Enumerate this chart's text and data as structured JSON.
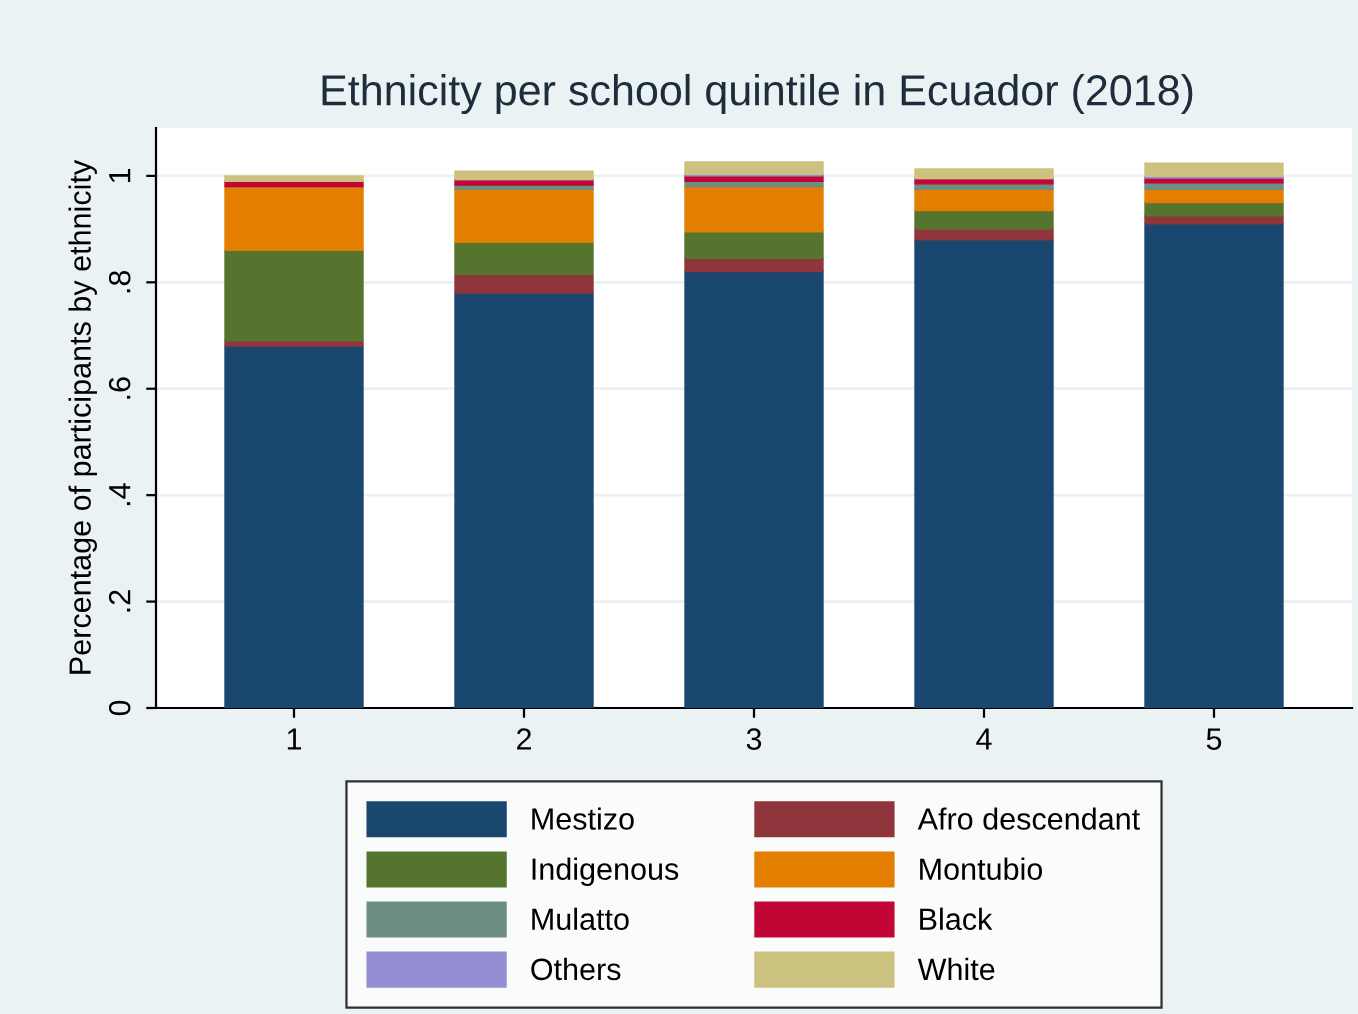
{
  "chart_data": {
    "type": "bar",
    "title": "Ethnicity per school quintile in Ecuador (2018)",
    "ylabel": "Percentage of participants by ethnicity",
    "categories": [
      "1",
      "2",
      "3",
      "4",
      "5"
    ],
    "stacked": true,
    "ylim": [
      0,
      1.09
    ],
    "yticks": [
      0,
      {
        "value": 0.2,
        "label": ".2"
      },
      {
        "value": 0.4,
        "label": ".4"
      },
      {
        "value": 0.6,
        "label": ".6"
      },
      {
        "value": 0.8,
        "label": ".8"
      },
      1
    ],
    "grid": "y",
    "legend": "bottom",
    "series": [
      {
        "name": "Mestizo",
        "color": "#1a476f",
        "values": [
          0.68,
          0.78,
          0.82,
          0.88,
          0.91
        ]
      },
      {
        "name": "Afro descendant",
        "color": "#90353b",
        "values": [
          0.01,
          0.035,
          0.025,
          0.02,
          0.015
        ]
      },
      {
        "name": "Indigenous",
        "color": "#55752f",
        "values": [
          0.17,
          0.06,
          0.05,
          0.035,
          0.025
        ]
      },
      {
        "name": "Montubio",
        "color": "#e37e00",
        "values": [
          0.12,
          0.1,
          0.085,
          0.04,
          0.025
        ]
      },
      {
        "name": "Mulatto",
        "color": "#6e8e84",
        "values": [
          null,
          0.008,
          0.01,
          0.01,
          0.012
        ]
      },
      {
        "name": "Black",
        "color": "#c10534",
        "values": [
          0.01,
          0.01,
          0.01,
          0.01,
          0.009
        ]
      },
      {
        "name": "Others",
        "color": "#938dd2",
        "values": [
          null,
          null,
          0.003,
          null,
          0.003
        ]
      },
      {
        "name": "White",
        "color": "#cac27e",
        "values": [
          0.01,
          0.016,
          0.023,
          0.018,
          0.025
        ]
      }
    ]
  }
}
